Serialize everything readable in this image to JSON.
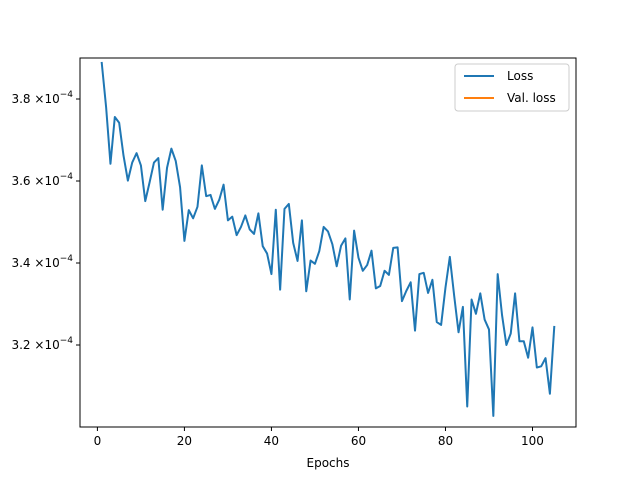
{
  "chart_data": {
    "type": "line",
    "title": "",
    "xlabel": "Epochs",
    "ylabel": "",
    "xlim": [
      -4,
      110
    ],
    "ylim": [
      0.0003,
      0.00039
    ],
    "x_ticks": [
      0,
      20,
      40,
      60,
      80,
      100
    ],
    "y_ticks": [
      {
        "value": 0.00032,
        "mantissa": "3.2",
        "exponent": "−4"
      },
      {
        "value": 0.00034,
        "mantissa": "3.4",
        "exponent": "−4"
      },
      {
        "value": 0.00036,
        "mantissa": "3.6",
        "exponent": "−4"
      },
      {
        "value": 0.00038,
        "mantissa": "3.8",
        "exponent": "−4"
      }
    ],
    "y_tick_base": "×10",
    "grid": false,
    "legend_position": "top-right",
    "series": [
      {
        "name": "Loss",
        "color": "#1f77b4",
        "x": [
          1,
          2,
          3,
          4,
          5,
          6,
          7,
          8,
          9,
          10,
          11,
          12,
          13,
          14,
          15,
          16,
          17,
          18,
          19,
          20,
          21,
          22,
          23,
          24,
          25,
          26,
          27,
          28,
          29,
          30,
          31,
          32,
          33,
          34,
          35,
          36,
          37,
          38,
          39,
          40,
          41,
          42,
          43,
          44,
          45,
          46,
          47,
          48,
          49,
          50,
          51,
          52,
          53,
          54,
          55,
          56,
          57,
          58,
          59,
          60,
          61,
          62,
          63,
          64,
          65,
          66,
          67,
          68,
          69,
          70,
          71,
          72,
          73,
          74,
          75,
          76,
          77,
          78,
          79,
          80,
          81,
          82,
          83,
          84,
          85,
          86,
          87,
          88,
          89,
          90,
          91,
          92,
          93,
          94,
          95,
          96,
          97,
          98,
          99,
          100,
          101,
          102,
          103,
          104,
          105
        ],
        "values": [
          0.0003888,
          0.000378,
          0.0003642,
          0.0003756,
          0.0003742,
          0.0003662,
          0.0003601,
          0.0003645,
          0.0003668,
          0.0003638,
          0.0003551,
          0.0003597,
          0.0003645,
          0.0003656,
          0.000353,
          0.0003632,
          0.0003679,
          0.0003649,
          0.0003585,
          0.0003454,
          0.0003529,
          0.0003509,
          0.0003537,
          0.0003638,
          0.0003563,
          0.0003566,
          0.0003532,
          0.0003554,
          0.0003591,
          0.0003504,
          0.0003513,
          0.0003468,
          0.0003488,
          0.0003516,
          0.0003482,
          0.0003471,
          0.0003521,
          0.0003441,
          0.0003423,
          0.0003373,
          0.000353,
          0.0003335,
          0.0003532,
          0.0003544,
          0.0003449,
          0.0003405,
          0.0003504,
          0.0003331,
          0.0003406,
          0.0003398,
          0.0003429,
          0.0003488,
          0.0003477,
          0.0003446,
          0.0003392,
          0.0003442,
          0.000346,
          0.0003311,
          0.0003479,
          0.0003413,
          0.0003381,
          0.0003395,
          0.000343,
          0.0003338,
          0.0003344,
          0.0003381,
          0.0003371,
          0.0003437,
          0.0003438,
          0.0003307,
          0.0003332,
          0.0003353,
          0.0003235,
          0.0003373,
          0.0003376,
          0.0003327,
          0.0003359,
          0.0003256,
          0.0003249,
          0.000334,
          0.0003415,
          0.000332,
          0.0003231,
          0.0003293,
          0.000305,
          0.0003311,
          0.0003276,
          0.0003326,
          0.0003262,
          0.0003238,
          0.0003027,
          0.0003373,
          0.0003273,
          0.00032,
          0.0003228,
          0.0003326,
          0.0003209,
          0.0003209,
          0.0003169,
          0.0003243,
          0.0003145,
          0.0003148,
          0.0003168,
          0.0003081,
          0.0003244
        ]
      },
      {
        "name": "Val. loss",
        "color": "#ff7f0e",
        "x": [],
        "values": []
      }
    ]
  }
}
